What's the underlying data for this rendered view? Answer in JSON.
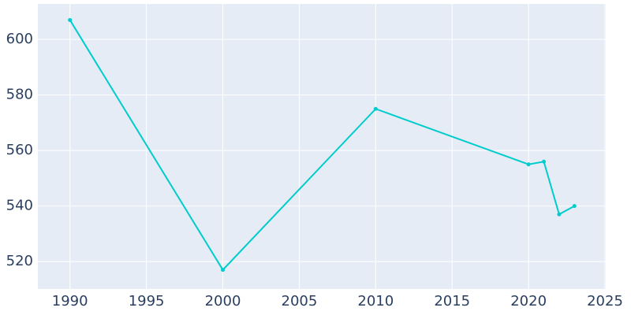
{
  "chart_data": {
    "type": "line",
    "x": [
      1990,
      2000,
      2010,
      2020,
      2021,
      2022,
      2023
    ],
    "series": [
      {
        "color": "#00cccc",
        "values": [
          607,
          517,
          575,
          555,
          556,
          537,
          540
        ]
      }
    ],
    "xlim": [
      1987.9,
      2025.05
    ],
    "xticks": [
      1990,
      1995,
      2000,
      2005,
      2010,
      2015,
      2020,
      2025
    ],
    "ylim": [
      510.1,
      612.8
    ],
    "yticks": [
      520,
      540,
      560,
      580,
      600
    ],
    "grid": true
  }
}
